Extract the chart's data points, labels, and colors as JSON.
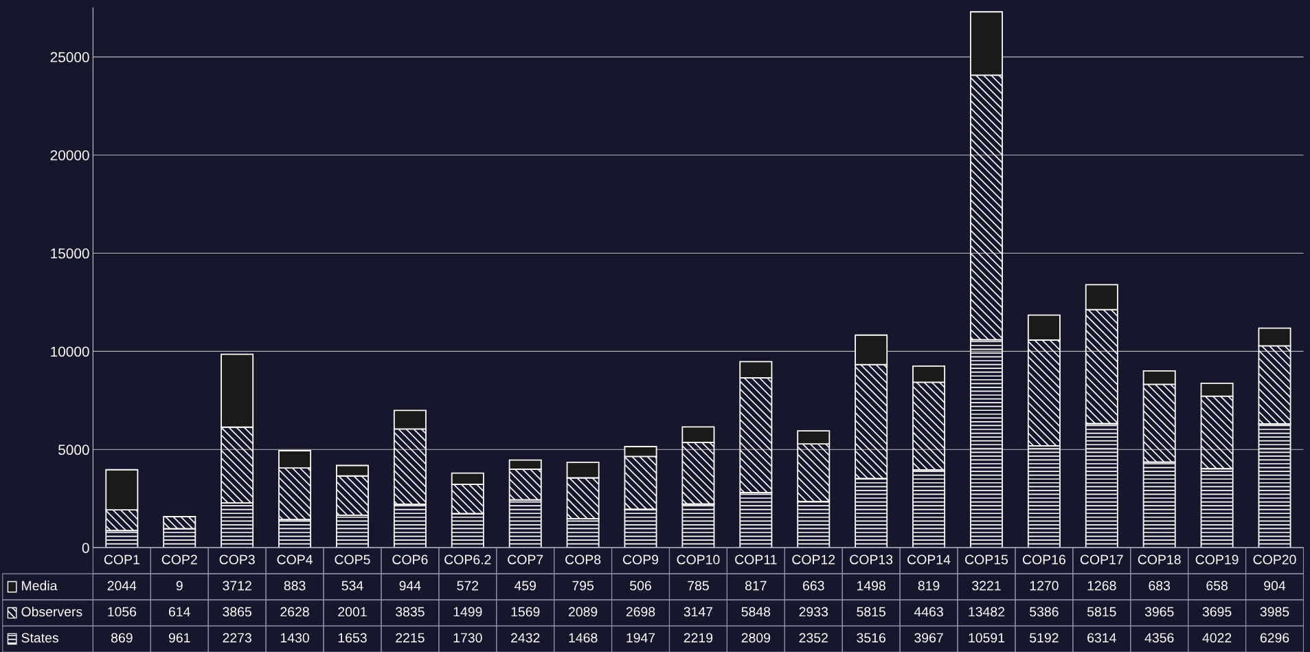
{
  "chart_data": {
    "type": "bar",
    "stacked": true,
    "data_labels": true,
    "legend": "bottom",
    "grid": "y",
    "categories": [
      "COP1",
      "COP2",
      "COP3",
      "COP4",
      "COP5",
      "COP6",
      "COP6.2",
      "COP7",
      "COP8",
      "COP9",
      "COP10",
      "COP11",
      "COP12",
      "COP13",
      "COP14",
      "COP15",
      "COP16",
      "COP17",
      "COP18",
      "COP19",
      "COP20"
    ],
    "ylim": [
      0,
      27500
    ],
    "yticks": [
      0,
      5000,
      10000,
      15000,
      20000,
      25000
    ],
    "series": [
      {
        "name": "States",
        "color": "#ffffff",
        "values": [
          869,
          961,
          2273,
          1430,
          1653,
          2215,
          1730,
          2432,
          1468,
          1947,
          2219,
          2809,
          2352,
          3516,
          3967,
          10591,
          5192,
          6314,
          4356,
          4022,
          6296
        ]
      },
      {
        "name": "Observers",
        "color": "#ffffff",
        "values": [
          1056,
          614,
          3865,
          2628,
          2001,
          3835,
          1499,
          1569,
          2089,
          2698,
          3147,
          5848,
          2933,
          5815,
          4463,
          13482,
          5386,
          5815,
          3965,
          3695,
          3985
        ]
      },
      {
        "name": "Media",
        "color": "#1a1a1a",
        "values": [
          2044,
          9,
          3712,
          883,
          534,
          944,
          572,
          459,
          795,
          506,
          785,
          817,
          663,
          1498,
          819,
          3221,
          1270,
          1268,
          683,
          658,
          904
        ]
      }
    ]
  }
}
